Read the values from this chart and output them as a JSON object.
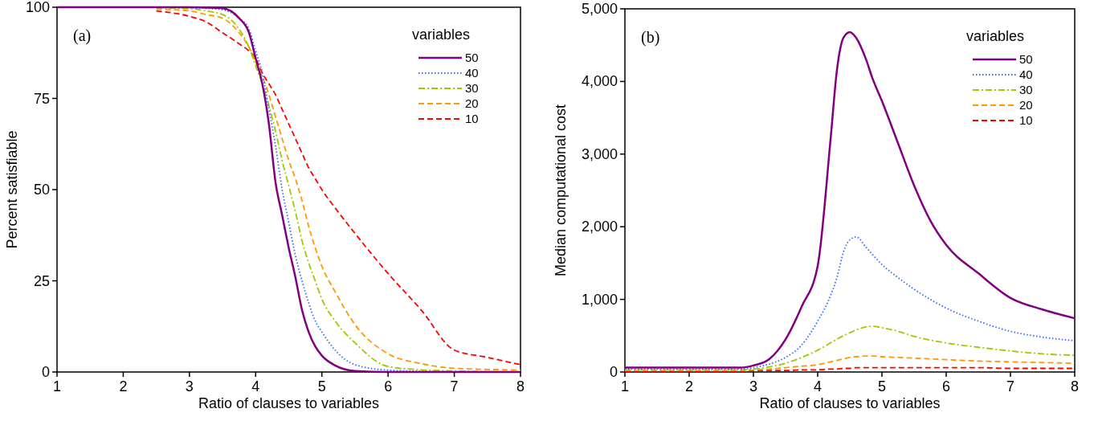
{
  "chart_data": [
    {
      "type": "line",
      "xlabel": "Ratio of clauses to variables",
      "ylabel": "Percent satisfiable",
      "legend_title": "variables",
      "legend": "top right",
      "annotations": [
        "(a)"
      ],
      "xlim": [
        1,
        8
      ],
      "ylim": [
        0,
        100
      ],
      "xticks": [
        1,
        2,
        3,
        4,
        5,
        6,
        7,
        8
      ],
      "yticks": [
        0,
        25,
        50,
        75,
        100
      ],
      "grid": false,
      "x": [
        1,
        2,
        2.5,
        3,
        3.25,
        3.5,
        3.75,
        3.9,
        4,
        4.1,
        4.2,
        4.3,
        4.4,
        4.5,
        4.6,
        4.7,
        4.8,
        4.9,
        5,
        5.2,
        5.5,
        6,
        6.5,
        7,
        7.5,
        8
      ],
      "series": [
        {
          "name": "50",
          "color": "#800080",
          "line_style": "solid",
          "values": [
            100,
            100,
            100,
            100,
            99.9,
            99.7,
            97,
            93,
            86,
            79,
            68,
            52,
            43,
            34,
            26,
            17,
            11,
            7,
            4.5,
            1.8,
            0.3,
            0,
            0,
            0,
            0,
            0
          ]
        },
        {
          "name": "40",
          "color": "#3366ff",
          "line_style": "dotted",
          "values": [
            null,
            null,
            null,
            99.9,
            99.7,
            99.3,
            97,
            94,
            88,
            82,
            72,
            62,
            50,
            41,
            32,
            25,
            19,
            14,
            11,
            6,
            2,
            0.5,
            0.2,
            0,
            null,
            null
          ]
        },
        {
          "name": "30",
          "color": "#99cc00",
          "line_style": "dashdot",
          "values": [
            null,
            null,
            99.9,
            99.6,
            99,
            98,
            94,
            89,
            84,
            79,
            73,
            66,
            58,
            51,
            44,
            36,
            30,
            25,
            20,
            14,
            8,
            1.5,
            0.6,
            0.3,
            0.1,
            0
          ]
        },
        {
          "name": "20",
          "color": "#ff9900",
          "line_style": "dashed",
          "values": [
            null,
            null,
            99.5,
            99,
            98,
            97,
            93,
            89,
            85,
            81,
            76,
            70,
            64,
            58,
            53,
            47,
            40,
            34,
            29,
            22,
            13,
            5,
            2.3,
            1,
            0.7,
            0.5
          ]
        },
        {
          "name": "10",
          "color": "#ff0000",
          "line_style": "dashed",
          "values": [
            null,
            null,
            99,
            97.5,
            96,
            93,
            90,
            88,
            86,
            82,
            79,
            76,
            72,
            68,
            64,
            60,
            56,
            53,
            50,
            45,
            38,
            27,
            17,
            6,
            4,
            2
          ]
        }
      ]
    },
    {
      "type": "line",
      "xlabel": "Ratio of clauses to variables",
      "ylabel": "Median computational cost",
      "legend_title": "variables",
      "legend": "top right",
      "annotations": [
        "(b)"
      ],
      "xlim": [
        1,
        8
      ],
      "ylim": [
        0,
        5000
      ],
      "xticks": [
        1,
        2,
        3,
        4,
        5,
        6,
        7,
        8
      ],
      "yticks": [
        {
          "value": 0,
          "label": "0"
        },
        {
          "value": 1000,
          "label": "1,000"
        },
        {
          "value": 2000,
          "label": "2,000"
        },
        {
          "value": 3000,
          "label": "3,000"
        },
        {
          "value": 4000,
          "label": "4,000"
        },
        {
          "value": 5000,
          "label": "5,000"
        }
      ],
      "grid": false,
      "x": [
        1,
        2,
        2.8,
        3,
        3.25,
        3.5,
        3.75,
        4,
        4.2,
        4.3,
        4.4,
        4.5,
        4.6,
        4.75,
        4.85,
        5,
        5.25,
        5.5,
        5.75,
        6,
        6.5,
        7,
        7.5,
        8
      ],
      "series": [
        {
          "name": "50",
          "color": "#800080",
          "line_style": "solid",
          "values": [
            60,
            60,
            60,
            90,
            180,
            450,
            900,
            1460,
            3200,
            4160,
            4600,
            4680,
            4600,
            4310,
            4050,
            3730,
            3150,
            2570,
            2090,
            1750,
            1360,
            1020,
            860,
            740
          ]
        },
        {
          "name": "40",
          "color": "#3366ff",
          "line_style": "dotted",
          "values": [
            40,
            40,
            40,
            60,
            110,
            200,
            370,
            700,
            1050,
            1300,
            1650,
            1820,
            1860,
            1720,
            1620,
            1480,
            1300,
            1140,
            1000,
            880,
            700,
            560,
            480,
            430
          ]
        },
        {
          "name": "30",
          "color": "#99cc00",
          "line_style": "dashdot",
          "values": [
            30,
            30,
            30,
            40,
            70,
            120,
            200,
            300,
            400,
            450,
            500,
            540,
            580,
            620,
            630,
            610,
            560,
            490,
            440,
            400,
            340,
            290,
            250,
            230
          ]
        },
        {
          "name": "20",
          "color": "#ff9900",
          "line_style": "dashed",
          "values": [
            20,
            20,
            20,
            30,
            40,
            60,
            80,
            100,
            140,
            160,
            180,
            200,
            210,
            220,
            220,
            210,
            200,
            190,
            180,
            170,
            150,
            140,
            130,
            120
          ]
        },
        {
          "name": "10",
          "color": "#ff0000",
          "line_style": "dashed",
          "values": [
            10,
            10,
            10,
            20,
            20,
            20,
            30,
            30,
            40,
            40,
            50,
            50,
            60,
            60,
            60,
            60,
            60,
            60,
            60,
            60,
            60,
            50,
            50,
            50
          ]
        }
      ]
    }
  ]
}
